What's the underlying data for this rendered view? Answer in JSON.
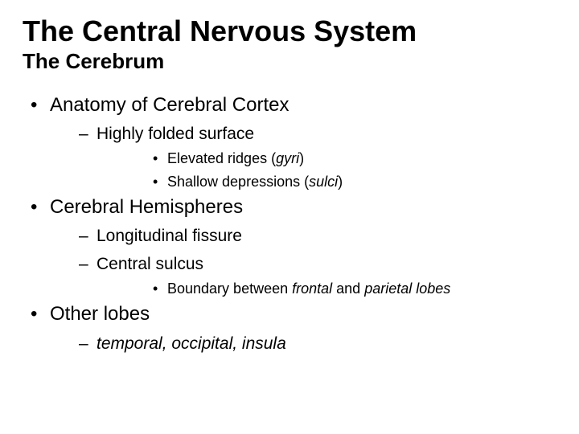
{
  "title": "The Central Nervous System",
  "subtitle": "The Cerebrum",
  "colors": {
    "background": "#ffffff",
    "text": "#000000"
  },
  "typography": {
    "font_family": "Arial",
    "title_fontsize_pt": 36,
    "subtitle_fontsize_pt": 26,
    "lvl1_fontsize_pt": 24,
    "lvl2_fontsize_pt": 21,
    "lvl3_fontsize_pt": 18,
    "title_weight": "bold",
    "subtitle_weight": "bold"
  },
  "bullets": {
    "lvl1_marker": "•",
    "lvl2_marker": "–",
    "lvl3_marker": "•"
  },
  "items": [
    {
      "text": "Anatomy of Cerebral Cortex",
      "children": [
        {
          "text": "Highly folded surface",
          "children": [
            {
              "pre": "Elevated ridges (",
              "ital": "gyri",
              "post": ")"
            },
            {
              "pre": "Shallow depressions (",
              "ital": "sulci",
              "post": ")"
            }
          ]
        }
      ]
    },
    {
      "text": "Cerebral Hemispheres",
      "children": [
        {
          "text": "Longitudinal fissure"
        },
        {
          "text": "Central sulcus",
          "children": [
            {
              "pre": "Boundary between ",
              "ital": "frontal",
              "mid": " and ",
              "ital2": "parietal lobes"
            }
          ]
        }
      ]
    },
    {
      "text": "Other lobes",
      "children": [
        {
          "ital": "temporal, occipital, insula"
        }
      ]
    }
  ]
}
